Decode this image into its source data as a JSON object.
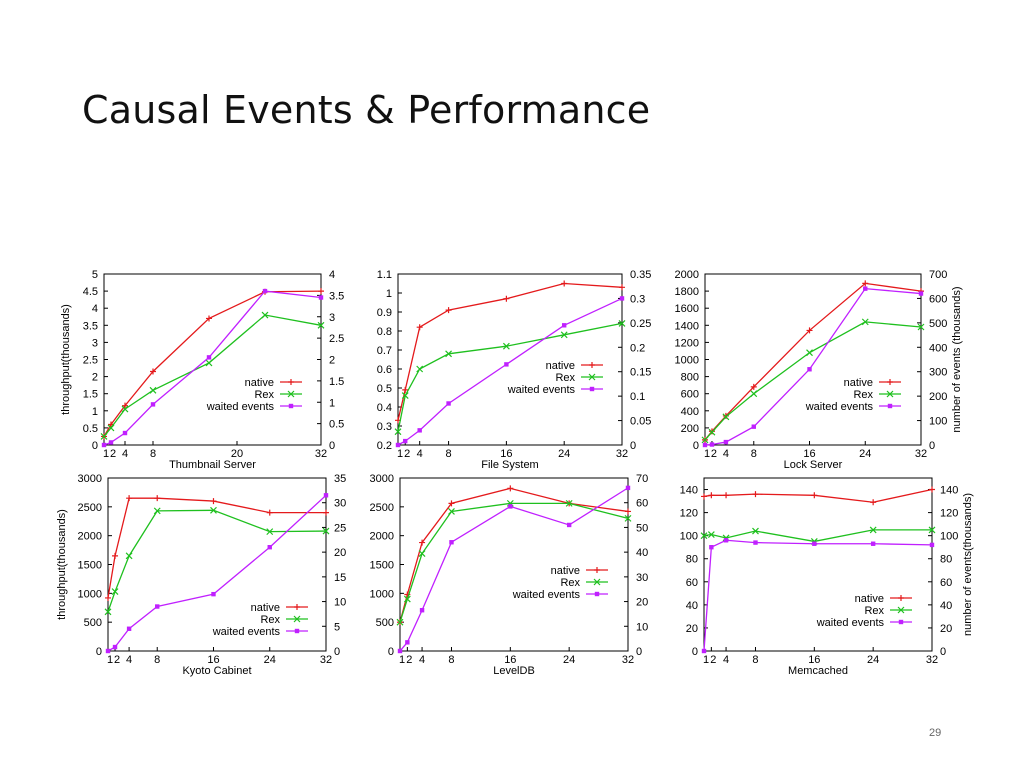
{
  "slide": {
    "title": "Causal Events & Performance",
    "page_number": "29"
  },
  "colors": {
    "native": "#e41a1c",
    "rex": "#1fc01f",
    "waited": "#c020ff",
    "frame": "#000000"
  },
  "legend_labels": [
    "native",
    "Rex",
    "waited events"
  ],
  "chart_data": [
    {
      "type": "line",
      "title": "Thumbnail Server",
      "ylabel_left": "throughput(thousands)",
      "ylabel_right": "",
      "x_ticks": [
        "1",
        "2",
        "4",
        "8",
        "20",
        "32"
      ],
      "xlim": [
        1,
        32
      ],
      "ylim_left": [
        0,
        5
      ],
      "y_ticks_left": [
        "0",
        "0.5",
        "1",
        "1.5",
        "2",
        "2.5",
        "3",
        "3.5",
        "4",
        "4.5",
        "5"
      ],
      "ylim_right": [
        0,
        4
      ],
      "y_ticks_right": [
        "0",
        "0.5",
        "1",
        "1.5",
        "2",
        "2.5",
        "3",
        "3.5",
        "4"
      ],
      "legend": "middle-right",
      "series": [
        {
          "name": "native",
          "axis": "left",
          "x": [
            1,
            2,
            4,
            8,
            16,
            24,
            32
          ],
          "values": [
            0.25,
            0.6,
            1.15,
            2.15,
            3.7,
            4.48,
            4.5
          ]
        },
        {
          "name": "Rex",
          "axis": "left",
          "x": [
            1,
            2,
            4,
            8,
            16,
            24,
            32
          ],
          "values": [
            0.25,
            0.5,
            1.05,
            1.6,
            2.4,
            3.8,
            3.5
          ]
        },
        {
          "name": "waited events",
          "axis": "right",
          "x": [
            1,
            2,
            4,
            8,
            16,
            24,
            32
          ],
          "values": [
            0,
            0.06,
            0.28,
            0.95,
            2.05,
            3.6,
            3.45
          ]
        }
      ]
    },
    {
      "type": "line",
      "title": "File System",
      "ylabel_left": "",
      "ylabel_right": "",
      "x_ticks": [
        "1",
        "2",
        "4",
        "8",
        "16",
        "24",
        "32"
      ],
      "xlim": [
        1,
        32
      ],
      "ylim_left": [
        0.2,
        1.1
      ],
      "y_ticks_left": [
        "0.2",
        "0.3",
        "0.4",
        "0.5",
        "0.6",
        "0.7",
        "0.8",
        "0.9",
        "1",
        "1.1"
      ],
      "ylim_right": [
        0,
        0.35
      ],
      "y_ticks_right": [
        "0",
        "0.05",
        "0.1",
        "0.15",
        "0.2",
        "0.25",
        "0.3",
        "0.35"
      ],
      "legend": "middle-right",
      "series": [
        {
          "name": "native",
          "axis": "left",
          "x": [
            1,
            2,
            4,
            8,
            16,
            24,
            32
          ],
          "values": [
            0.33,
            0.49,
            0.82,
            0.91,
            0.97,
            1.05,
            1.03
          ]
        },
        {
          "name": "Rex",
          "axis": "left",
          "x": [
            1,
            2,
            4,
            8,
            16,
            24,
            32
          ],
          "values": [
            0.27,
            0.46,
            0.6,
            0.68,
            0.72,
            0.78,
            0.84
          ]
        },
        {
          "name": "waited events",
          "axis": "right",
          "x": [
            1,
            2,
            4,
            8,
            16,
            24,
            32
          ],
          "values": [
            0,
            0.008,
            0.03,
            0.085,
            0.165,
            0.245,
            0.3
          ]
        }
      ]
    },
    {
      "type": "line",
      "title": "Lock Server",
      "ylabel_left": "",
      "ylabel_right": "number of events (thousands)",
      "x_ticks": [
        "1",
        "2",
        "4",
        "8",
        "16",
        "24",
        "32"
      ],
      "xlim": [
        1,
        32
      ],
      "ylim_left": [
        0,
        2000
      ],
      "y_ticks_left": [
        "0",
        "200",
        "400",
        "600",
        "800",
        "1000",
        "1200",
        "1400",
        "1600",
        "1800",
        "2000"
      ],
      "ylim_right": [
        0,
        700
      ],
      "y_ticks_right": [
        "0",
        "100",
        "200",
        "300",
        "400",
        "500",
        "600",
        "700"
      ],
      "legend": "middle-right",
      "series": [
        {
          "name": "native",
          "axis": "left",
          "x": [
            1,
            2,
            4,
            8,
            16,
            24,
            32
          ],
          "values": [
            60,
            160,
            340,
            680,
            1340,
            1890,
            1800
          ]
        },
        {
          "name": "Rex",
          "axis": "left",
          "x": [
            1,
            2,
            4,
            8,
            16,
            24,
            32
          ],
          "values": [
            60,
            150,
            330,
            600,
            1080,
            1440,
            1380
          ]
        },
        {
          "name": "waited events",
          "axis": "right",
          "x": [
            1,
            2,
            4,
            8,
            16,
            24,
            32
          ],
          "values": [
            0,
            2,
            12,
            75,
            310,
            640,
            620
          ]
        }
      ]
    },
    {
      "type": "line",
      "title": "Kyoto Cabinet",
      "ylabel_left": "throughput(thousands)",
      "ylabel_right": "",
      "x_ticks": [
        "1",
        "2",
        "4",
        "8",
        "16",
        "24",
        "32"
      ],
      "xlim": [
        1,
        32
      ],
      "ylim_left": [
        0,
        3000
      ],
      "y_ticks_left": [
        "0",
        "500",
        "1000",
        "1500",
        "2000",
        "2500",
        "3000"
      ],
      "ylim_right": [
        0,
        35
      ],
      "y_ticks_right": [
        "0",
        "5",
        "10",
        "15",
        "20",
        "25",
        "30",
        "35"
      ],
      "legend": "bottom-right",
      "series": [
        {
          "name": "native",
          "axis": "left",
          "x": [
            1,
            2,
            4,
            8,
            16,
            24,
            32
          ],
          "values": [
            920,
            1650,
            2650,
            2650,
            2600,
            2400,
            2400
          ]
        },
        {
          "name": "Rex",
          "axis": "left",
          "x": [
            1,
            2,
            4,
            8,
            16,
            24,
            32
          ],
          "values": [
            680,
            1030,
            1650,
            2430,
            2440,
            2070,
            2080
          ]
        },
        {
          "name": "waited events",
          "axis": "right",
          "x": [
            1,
            2,
            4,
            8,
            16,
            24,
            32
          ],
          "values": [
            0,
            0.8,
            4.5,
            9,
            11.5,
            21,
            31.5
          ]
        }
      ]
    },
    {
      "type": "line",
      "title": "LevelDB",
      "ylabel_left": "",
      "ylabel_right": "",
      "x_ticks": [
        "1",
        "2",
        "4",
        "8",
        "16",
        "24",
        "32"
      ],
      "xlim": [
        1,
        32
      ],
      "ylim_left": [
        0,
        3000
      ],
      "y_ticks_left": [
        "0",
        "500",
        "1000",
        "1500",
        "2000",
        "2500",
        "3000"
      ],
      "ylim_right": [
        0,
        70
      ],
      "y_ticks_right": [
        "0",
        "10",
        "20",
        "30",
        "40",
        "50",
        "60",
        "70"
      ],
      "legend": "bottom-right",
      "series": [
        {
          "name": "native",
          "axis": "left",
          "x": [
            1,
            2,
            4,
            8,
            16,
            24,
            32
          ],
          "values": [
            500,
            980,
            1880,
            2560,
            2820,
            2560,
            2420
          ]
        },
        {
          "name": "Rex",
          "axis": "left",
          "x": [
            1,
            2,
            4,
            8,
            16,
            24,
            32
          ],
          "values": [
            500,
            900,
            1690,
            2420,
            2560,
            2560,
            2300
          ]
        },
        {
          "name": "waited events",
          "axis": "right",
          "x": [
            1,
            2,
            4,
            8,
            16,
            24,
            32
          ],
          "values": [
            0,
            3.5,
            16.5,
            44,
            58.5,
            51,
            66
          ]
        }
      ]
    },
    {
      "type": "line",
      "title": "Memcached",
      "ylabel_left": "",
      "ylabel_right": "number of events(thousands)",
      "x_ticks": [
        "1",
        "2",
        "4",
        "8",
        "16",
        "24",
        "32"
      ],
      "xlim": [
        1,
        32
      ],
      "ylim_left": [
        0,
        150
      ],
      "y_ticks_left": [
        "0",
        "20",
        "40",
        "60",
        "80",
        "100",
        "120",
        "140"
      ],
      "ylim_right": [
        0,
        150
      ],
      "y_ticks_right": [
        "0",
        "20",
        "40",
        "60",
        "80",
        "100",
        "120",
        "140"
      ],
      "legend": "bottom-right",
      "series": [
        {
          "name": "native",
          "axis": "left",
          "x": [
            1,
            2,
            4,
            8,
            16,
            24,
            32
          ],
          "values": [
            134,
            135,
            135,
            136,
            135,
            129,
            140
          ]
        },
        {
          "name": "Rex",
          "axis": "left",
          "x": [
            1,
            2,
            4,
            8,
            16,
            24,
            32
          ],
          "values": [
            100,
            101,
            98,
            104,
            95,
            105,
            105
          ]
        },
        {
          "name": "waited events",
          "axis": "right",
          "x": [
            1,
            2,
            4,
            8,
            16,
            24,
            32
          ],
          "values": [
            0,
            90,
            96,
            94,
            93,
            93,
            92
          ]
        }
      ]
    }
  ]
}
